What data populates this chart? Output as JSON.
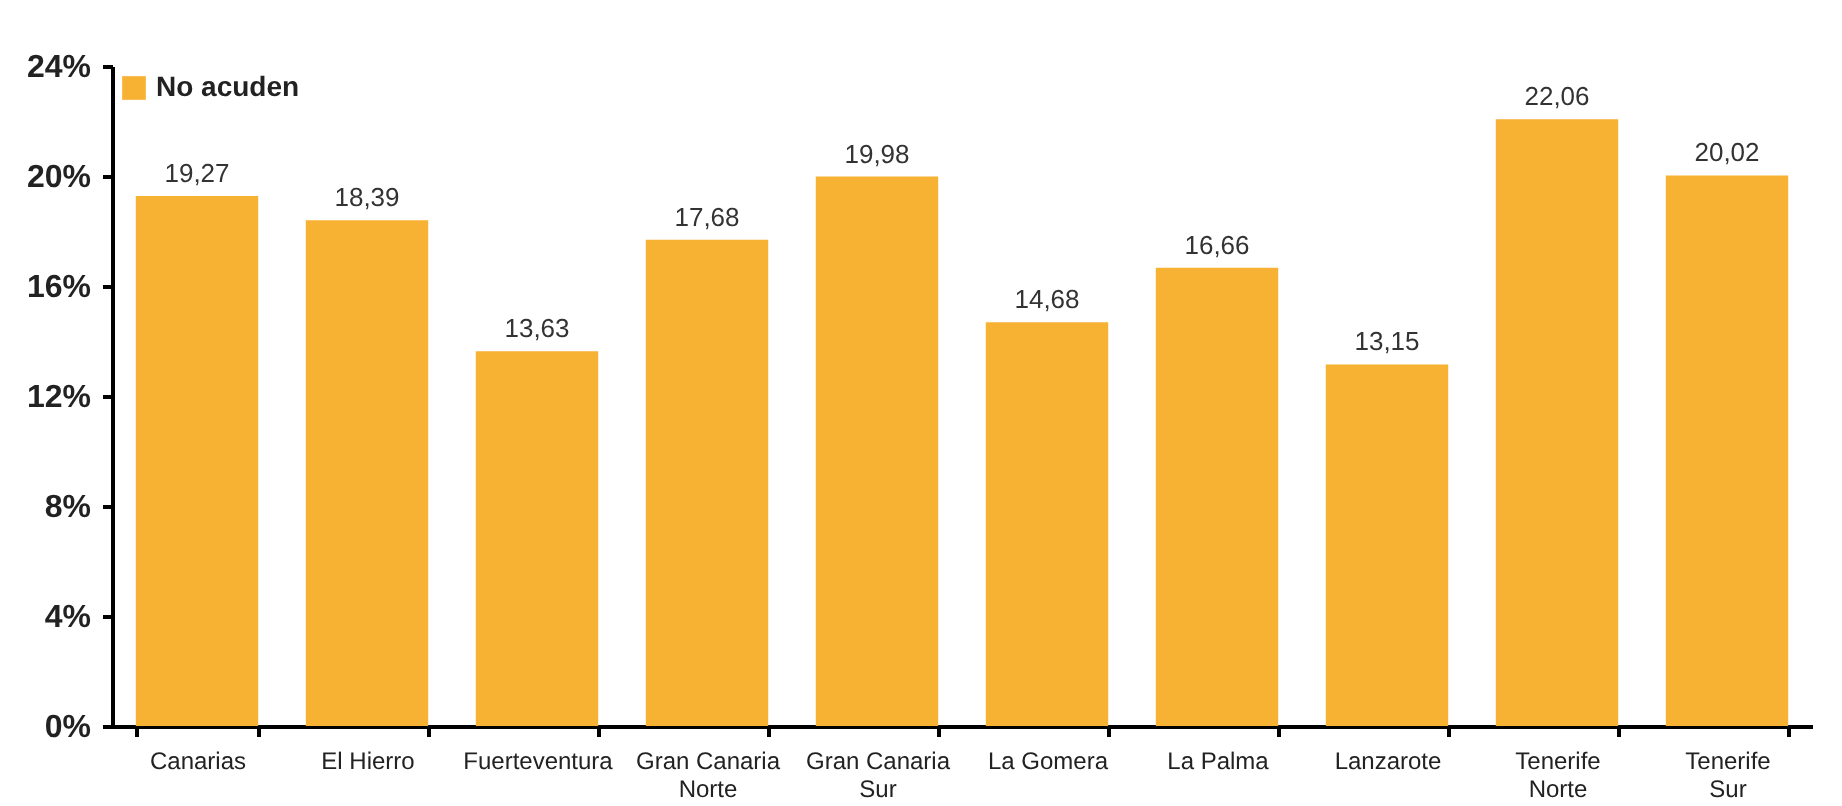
{
  "chart_data": {
    "type": "bar",
    "categories": [
      "Canarias",
      "El Hierro",
      "Fuerteventura",
      "Gran Canaria Norte",
      "Gran Canaria Sur",
      "La Gomera",
      "La Palma",
      "Lanzarote",
      "Tenerife Norte",
      "Tenerife Sur"
    ],
    "series": [
      {
        "name": "No acuden",
        "color": "#f7b133",
        "values": [
          19.27,
          18.39,
          13.63,
          17.68,
          19.98,
          14.68,
          16.66,
          13.15,
          22.06,
          20.02
        ],
        "value_labels": [
          "19,27",
          "18,39",
          "13,63",
          "17,68",
          "19,98",
          "14,68",
          "16,66",
          "13,15",
          "22,06",
          "20,02"
        ]
      }
    ],
    "ylim": [
      0,
      24
    ],
    "yticks": [
      {
        "value": 0,
        "label": "0%"
      },
      {
        "value": 4,
        "label": "4%"
      },
      {
        "value": 8,
        "label": "8%"
      },
      {
        "value": 12,
        "label": "12%"
      },
      {
        "value": 16,
        "label": "16%"
      },
      {
        "value": 20,
        "label": "20%"
      },
      {
        "value": 24,
        "label": "24%"
      }
    ],
    "grid": false,
    "legend": "top left"
  }
}
